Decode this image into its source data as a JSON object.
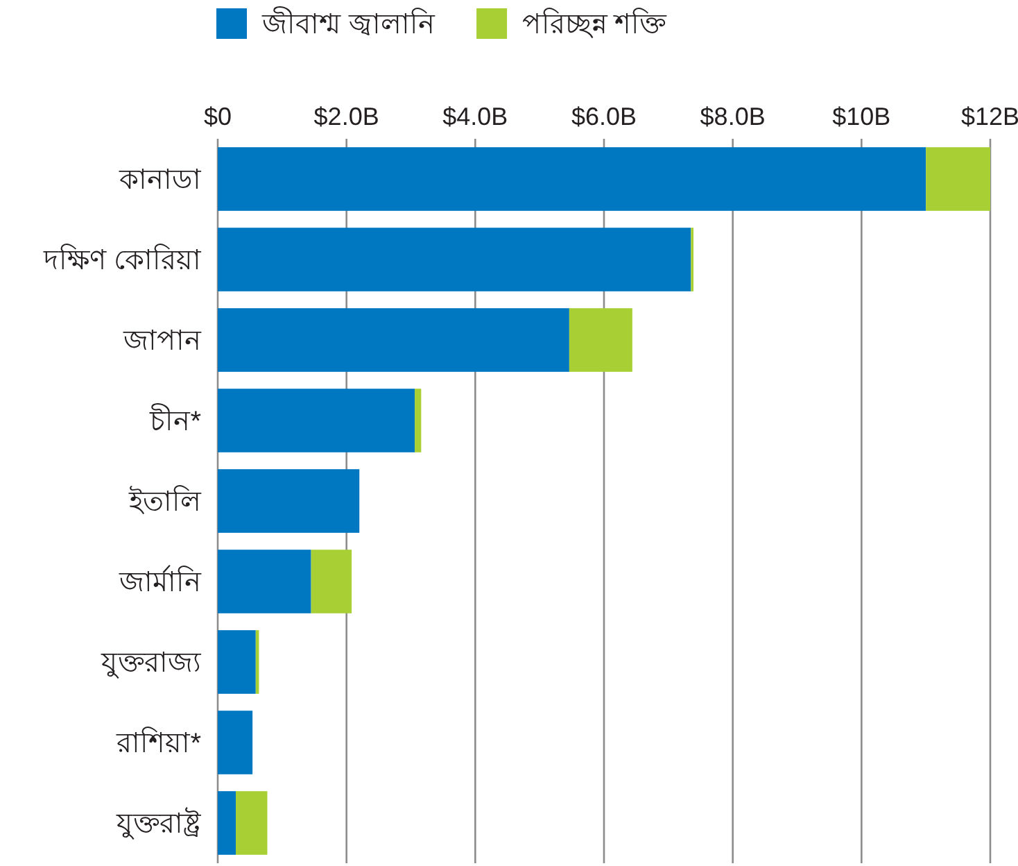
{
  "chart_data": {
    "type": "bar",
    "orientation": "horizontal",
    "stacked": true,
    "categories": [
      "কানাডা",
      "দক্ষিণ কোরিয়া",
      "জাপান",
      "চীন*",
      "ইতালি",
      "জার্মানি",
      "যুক্তরাজ্য",
      "রাশিয়া*",
      "যুক্তরাষ্ট্র"
    ],
    "series": [
      {
        "name": "জীবাশ্ম জ্বালানি",
        "color": "#0077c1",
        "values": [
          11.0,
          7.35,
          5.46,
          3.06,
          2.2,
          1.45,
          0.59,
          0.54,
          0.28
        ]
      },
      {
        "name": "পরিচ্ছন্ন শক্তি",
        "color": "#a8cf33",
        "values": [
          1.0,
          0.04,
          0.98,
          0.1,
          null,
          0.63,
          0.05,
          null,
          0.49
        ]
      }
    ],
    "xlim": [
      0,
      12
    ],
    "xticks": [
      {
        "value": 0,
        "label": "$0"
      },
      {
        "value": 2,
        "label": "$2.0B"
      },
      {
        "value": 4,
        "label": "$4.0B"
      },
      {
        "value": 6,
        "label": "$6.0B"
      },
      {
        "value": 8,
        "label": "$8.0B"
      },
      {
        "value": 10,
        "label": "$10B"
      },
      {
        "value": 12,
        "label": "$12B"
      }
    ],
    "grid": "x",
    "legend": "top"
  }
}
